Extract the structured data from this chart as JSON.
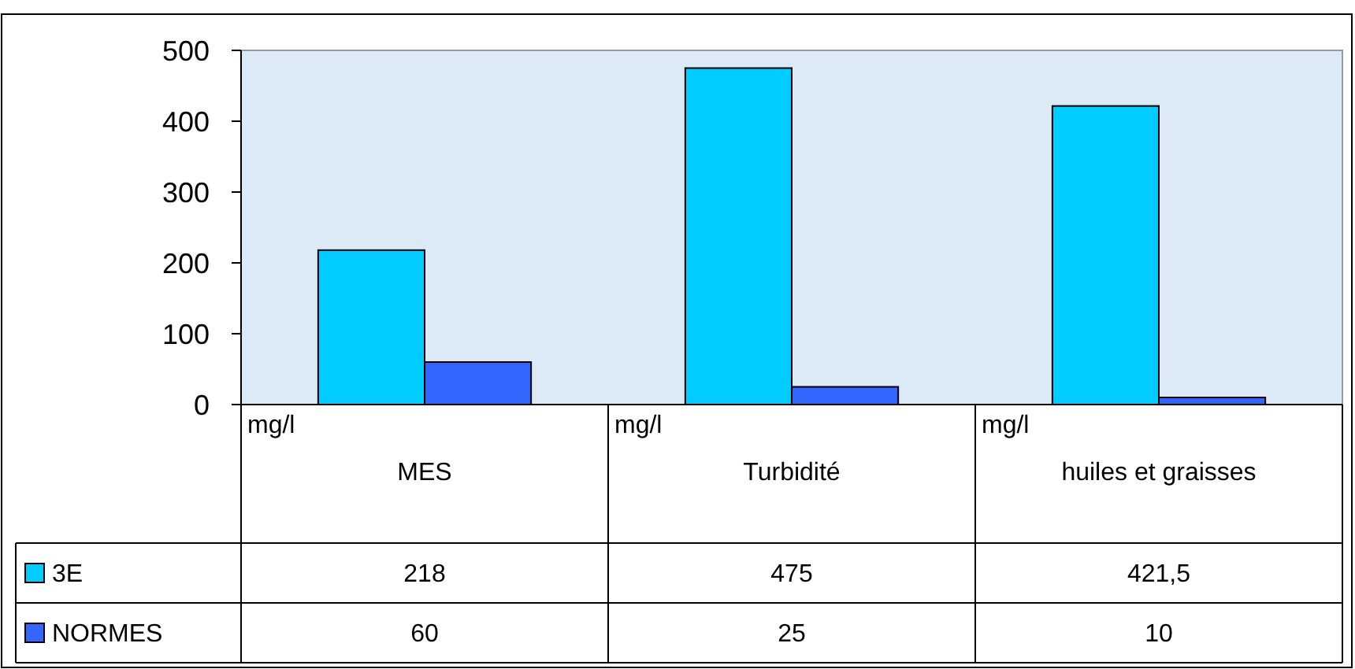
{
  "chart_data": {
    "type": "bar",
    "categories": [
      "mg/l\nMES",
      "mg/l\nTurbidité",
      "mg/l\nhuiles et graisses"
    ],
    "series": [
      {
        "name": "3E",
        "color": "#00ccff",
        "values": [
          218,
          475,
          421.5
        ],
        "value_labels": [
          "218",
          "475",
          "421,5"
        ]
      },
      {
        "name": "NORMES",
        "color": "#3366ff",
        "values": [
          60,
          25,
          10
        ],
        "value_labels": [
          "60",
          "25",
          "10"
        ]
      }
    ],
    "ylim": [
      0,
      500
    ],
    "yticks": [
      0,
      100,
      200,
      300,
      400,
      500
    ],
    "legend": "bottom",
    "grid": false
  }
}
